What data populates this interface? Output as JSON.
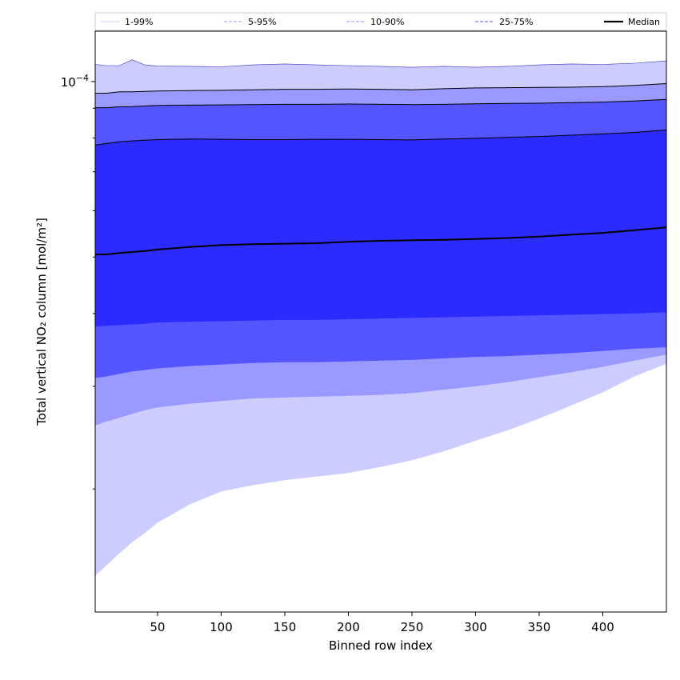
{
  "chart_data": {
    "type": "area",
    "xlabel": "Binned row index",
    "ylabel": "Total vertical NO₂ column [mol/m²]",
    "xlim": [
      1,
      450
    ],
    "ylim": [
      1.23e-05,
      0.000122
    ],
    "y_scale": "log",
    "x_ticks": [
      50,
      100,
      150,
      200,
      250,
      300,
      350,
      400
    ],
    "y_tick_label": {
      "value": 0.0001,
      "base": "10",
      "exponent": "−4"
    },
    "legend_position": "top",
    "x": [
      1,
      10,
      20,
      30,
      40,
      50,
      75,
      100,
      125,
      150,
      175,
      200,
      225,
      250,
      275,
      300,
      325,
      350,
      375,
      400,
      425,
      450
    ],
    "median": [
      5.05e-05,
      5.05e-05,
      5.08e-05,
      5.1e-05,
      5.12e-05,
      5.15e-05,
      5.2e-05,
      5.24e-05,
      5.26e-05,
      5.27e-05,
      5.28e-05,
      5.31e-05,
      5.33e-05,
      5.34e-05,
      5.35e-05,
      5.37e-05,
      5.39e-05,
      5.42e-05,
      5.46e-05,
      5.5e-05,
      5.56e-05,
      5.62e-05
    ],
    "bands": [
      {
        "name": "1-99%",
        "color": "#ccccff",
        "lower": [
          1.42e-05,
          1.48e-05,
          1.55e-05,
          1.62e-05,
          1.68e-05,
          1.75e-05,
          1.88e-05,
          1.98e-05,
          2.03e-05,
          2.07e-05,
          2.1e-05,
          2.13e-05,
          2.18e-05,
          2.24e-05,
          2.32e-05,
          2.42e-05,
          2.52e-05,
          2.64e-05,
          2.78e-05,
          2.93e-05,
          3.12e-05,
          3.28e-05
        ],
        "upper": [
          0.000107,
          0.0001065,
          0.0001065,
          0.000109,
          0.0001068,
          0.0001063,
          0.0001062,
          0.000106,
          0.0001068,
          0.0001072,
          0.0001068,
          0.0001065,
          0.0001062,
          0.0001058,
          0.0001062,
          0.0001058,
          0.0001062,
          0.0001068,
          0.0001072,
          0.000107,
          0.0001075,
          0.0001085
        ]
      },
      {
        "name": "5-95%",
        "color": "#9999ff",
        "lower": [
          2.57e-05,
          2.61e-05,
          2.65e-05,
          2.69e-05,
          2.73e-05,
          2.76e-05,
          2.8e-05,
          2.83e-05,
          2.86e-05,
          2.87e-05,
          2.88e-05,
          2.89e-05,
          2.9e-05,
          2.92e-05,
          2.96e-05,
          3e-05,
          3.05e-05,
          3.11e-05,
          3.17e-05,
          3.24e-05,
          3.32e-05,
          3.4e-05
        ],
        "upper": [
          9.55e-05,
          9.55e-05,
          9.6e-05,
          9.6e-05,
          9.62e-05,
          9.63e-05,
          9.65e-05,
          9.66e-05,
          9.68e-05,
          9.7e-05,
          9.7e-05,
          9.71e-05,
          9.7e-05,
          9.68e-05,
          9.72e-05,
          9.75e-05,
          9.76e-05,
          9.77e-05,
          9.78e-05,
          9.8e-05,
          9.85e-05,
          9.92e-05
        ]
      },
      {
        "name": "10-90%",
        "color": "#5555ff",
        "lower": [
          3.1e-05,
          3.12e-05,
          3.15e-05,
          3.18e-05,
          3.2e-05,
          3.22e-05,
          3.25e-05,
          3.27e-05,
          3.29e-05,
          3.3e-05,
          3.3e-05,
          3.31e-05,
          3.32e-05,
          3.33e-05,
          3.35e-05,
          3.37e-05,
          3.38e-05,
          3.4e-05,
          3.42e-05,
          3.45e-05,
          3.48e-05,
          3.5e-05
        ],
        "upper": [
          9.02e-05,
          9.02e-05,
          9.05e-05,
          9.06e-05,
          9.08e-05,
          9.1e-05,
          9.11e-05,
          9.12e-05,
          9.13e-05,
          9.14e-05,
          9.14e-05,
          9.15e-05,
          9.14e-05,
          9.13e-05,
          9.14e-05,
          9.16e-05,
          9.17e-05,
          9.18e-05,
          9.2e-05,
          9.22e-05,
          9.26e-05,
          9.32e-05
        ]
      },
      {
        "name": "25-75%",
        "color": "#2b2bff",
        "lower": [
          3.8e-05,
          3.81e-05,
          3.82e-05,
          3.83e-05,
          3.84e-05,
          3.86e-05,
          3.87e-05,
          3.88e-05,
          3.89e-05,
          3.9e-05,
          3.9e-05,
          3.91e-05,
          3.92e-05,
          3.93e-05,
          3.94e-05,
          3.95e-05,
          3.96e-05,
          3.97e-05,
          3.98e-05,
          3.99e-05,
          4e-05,
          4.02e-05
        ],
        "upper": [
          7.78e-05,
          7.83e-05,
          7.88e-05,
          7.91e-05,
          7.93e-05,
          7.95e-05,
          7.97e-05,
          7.96e-05,
          7.95e-05,
          7.95e-05,
          7.96e-05,
          7.96e-05,
          7.95e-05,
          7.94e-05,
          7.97e-05,
          7.99e-05,
          8.02e-05,
          8.05e-05,
          8.09e-05,
          8.13e-05,
          8.18e-05,
          8.26e-05
        ]
      }
    ],
    "legend": [
      {
        "label": "1-99%",
        "color": "#ccccff",
        "style": "solid"
      },
      {
        "label": "5-95%",
        "color": "#9999ff",
        "style": "dashed"
      },
      {
        "label": "10-90%",
        "color": "#8888ff",
        "style": "dashed"
      },
      {
        "label": "25-75%",
        "color": "#5555ff",
        "style": "dashed"
      },
      {
        "label": "Median",
        "color": "#000000",
        "style": "solid"
      }
    ]
  }
}
